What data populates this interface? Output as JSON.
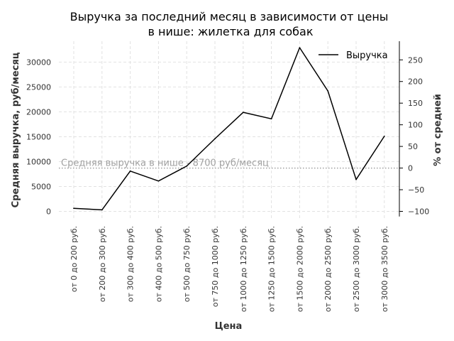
{
  "chart_data": {
    "type": "line",
    "title_line1": "Выручка за последний месяц в зависимости от цены",
    "title_line2": "в нише: жилетка для собак",
    "xlabel": "Цена",
    "ylabel": "Средняя выручка, руб/месяц",
    "y2label": "% от средней",
    "categories": [
      "от 0 до 200 руб.",
      "от 200 до 300 руб.",
      "от 300 до 400 руб.",
      "от 400 до 500 руб.",
      "от 500 до 750 руб.",
      "от 750 до 1000 руб.",
      "от 1000 до 1250 руб.",
      "от 1250 до 1500 руб.",
      "от 1500 до 2000 руб.",
      "от 2000 до 2500 руб.",
      "от 2500 до 3000 руб.",
      "от 3000 до 3500 руб."
    ],
    "series": [
      {
        "name": "Выручка",
        "color": "#000000",
        "values": [
          600,
          300,
          8100,
          6100,
          9100,
          14600,
          19900,
          18600,
          32900,
          24200,
          6400,
          15100
        ]
      }
    ],
    "ylim": [
      -1500,
      34200
    ],
    "yticks": [
      0,
      5000,
      10000,
      15000,
      20000,
      25000,
      30000
    ],
    "y2ticks": [
      -100,
      -50,
      0,
      50,
      100,
      150,
      200,
      250
    ],
    "reference_line": {
      "value": 8700,
      "label": "Средняя выручка в нише - 8700 руб/месяц",
      "color": "#a0a0a0"
    },
    "grid": true,
    "legend_position": "top-right"
  }
}
